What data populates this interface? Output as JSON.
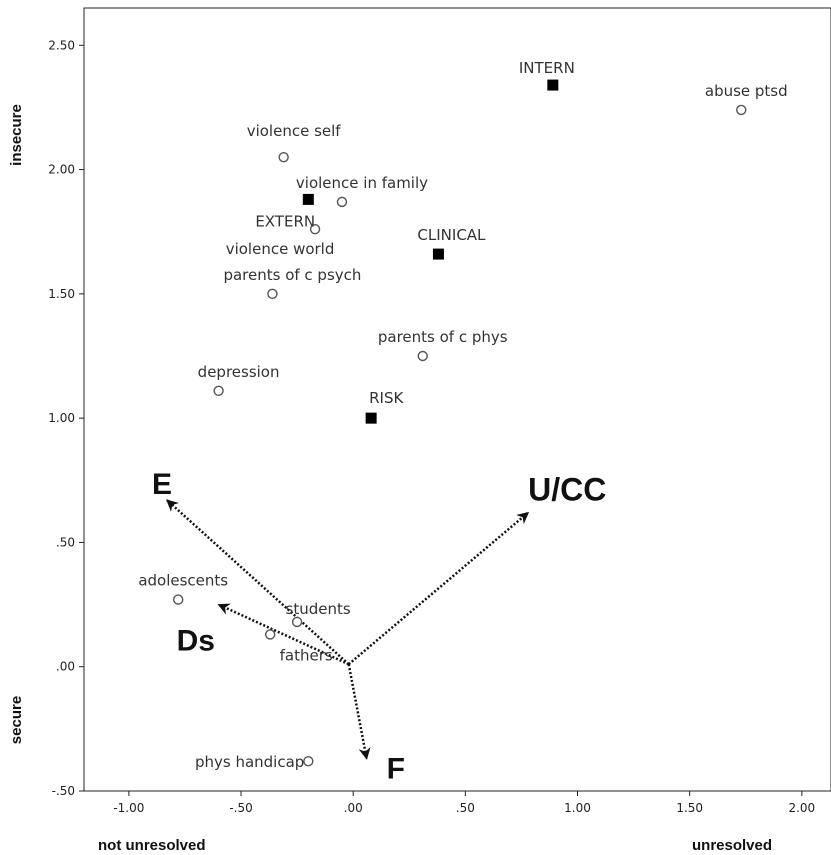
{
  "chart_data": {
    "type": "scatter",
    "xlim": [
      -1.2,
      2.13
    ],
    "ylim": [
      -0.5,
      2.65
    ],
    "x_ticks": [
      {
        "value": -1.0,
        "label": "-1.00"
      },
      {
        "value": -0.5,
        "label": "-.50"
      },
      {
        "value": 0.0,
        "label": ".00"
      },
      {
        "value": 0.5,
        "label": ".50"
      },
      {
        "value": 1.0,
        "label": "1.00"
      },
      {
        "value": 1.5,
        "label": "1.50"
      },
      {
        "value": 2.0,
        "label": "2.00"
      }
    ],
    "y_ticks": [
      {
        "value": -0.5,
        "label": "-.50"
      },
      {
        "value": 0.0,
        "label": ".00"
      },
      {
        "value": 0.5,
        "label": ".50"
      },
      {
        "value": 1.0,
        "label": "1.00"
      },
      {
        "value": 1.5,
        "label": "1.50"
      },
      {
        "value": 2.0,
        "label": "2.00"
      },
      {
        "value": 2.5,
        "label": "2.50"
      }
    ],
    "y_axis_top_label": "insecure",
    "y_axis_bottom_label": "secure",
    "x_axis_left_label": "not unresolved",
    "x_axis_right_label": "unresolved",
    "grid": false,
    "legend": "none",
    "series": [
      {
        "marker": "circle",
        "points": [
          {
            "label": "violence self",
            "x": -0.31,
            "y": 2.05
          },
          {
            "label": "violence in family",
            "x": -0.05,
            "y": 1.87
          },
          {
            "label": "violence world",
            "x": -0.17,
            "y": 1.76
          },
          {
            "label": "parents of c psych",
            "x": -0.36,
            "y": 1.5
          },
          {
            "label": "parents of c phys",
            "x": 0.31,
            "y": 1.25
          },
          {
            "label": "depression",
            "x": -0.6,
            "y": 1.11
          },
          {
            "label": "abuse ptsd",
            "x": 1.73,
            "y": 2.24
          },
          {
            "label": "adolescents",
            "x": -0.78,
            "y": 0.27
          },
          {
            "label": "students",
            "x": -0.25,
            "y": 0.18
          },
          {
            "label": "fathers",
            "x": -0.37,
            "y": 0.13
          },
          {
            "label": "phys handicap",
            "x": -0.2,
            "y": -0.38
          }
        ]
      },
      {
        "marker": "square",
        "points": [
          {
            "label": "INTERN",
            "x": 0.89,
            "y": 2.34
          },
          {
            "label": "EXTERN",
            "x": -0.2,
            "y": 1.88
          },
          {
            "label": "CLINICAL",
            "x": 0.38,
            "y": 1.66
          },
          {
            "label": "RISK",
            "x": 0.08,
            "y": 1.0
          }
        ]
      }
    ],
    "vectors": [
      {
        "label": "E",
        "x0": -0.02,
        "y0": 0.01,
        "x1": -0.83,
        "y1": 0.67
      },
      {
        "label": "U/CC",
        "x0": -0.02,
        "y0": 0.01,
        "x1": 0.78,
        "y1": 0.62
      },
      {
        "label": "Ds",
        "x0": -0.02,
        "y0": 0.01,
        "x1": -0.6,
        "y1": 0.25
      },
      {
        "label": "F",
        "x0": -0.02,
        "y0": 0.01,
        "x1": 0.06,
        "y1": -0.37
      }
    ],
    "colors": {
      "marker_fill": "#000000",
      "marker_stroke": "#555555",
      "vector": "#111111"
    }
  }
}
